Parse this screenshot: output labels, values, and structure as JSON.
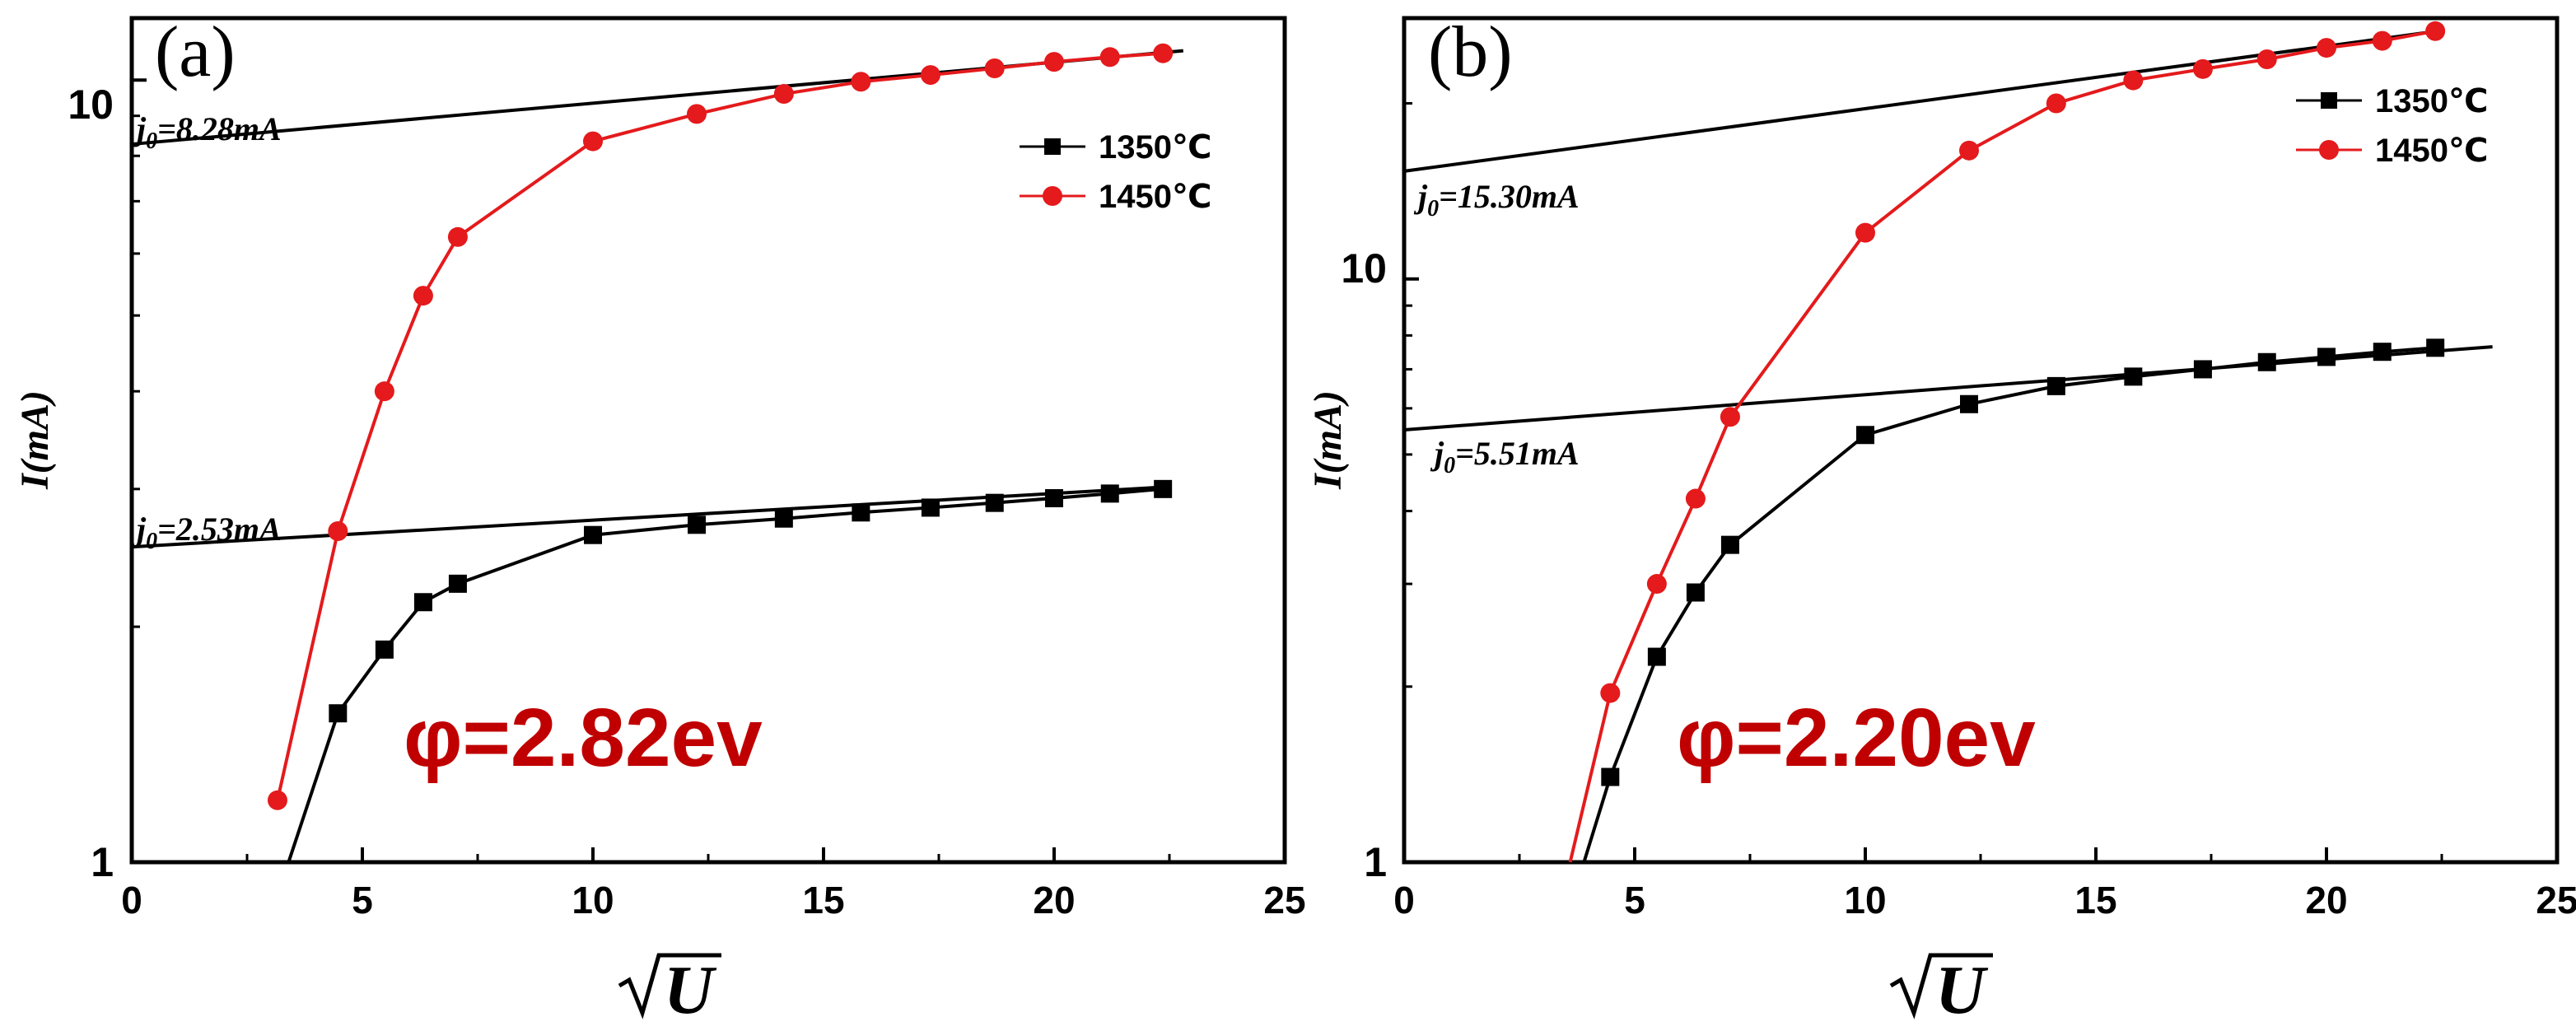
{
  "chart_data": [
    {
      "panel_label": "(a)",
      "type": "line",
      "scale": {
        "x": "linear",
        "y": "log"
      },
      "xlabel": "√U",
      "ylabel": "I(mA)",
      "xlim": [
        0,
        25
      ],
      "ylim": [
        1,
        12
      ],
      "x_ticks": [
        "0",
        "5",
        "10",
        "15",
        "20",
        "25"
      ],
      "y_ticks": [
        "1",
        "10"
      ],
      "legend": {
        "position": "top-right",
        "entries": [
          {
            "label": "1350℃",
            "color": "#000000",
            "marker": "square"
          },
          {
            "label": "1450℃",
            "color": "#e41a1c",
            "marker": "circle"
          }
        ]
      },
      "series": [
        {
          "name": "1350℃",
          "color": "#000000",
          "marker": "square",
          "x": [
            4.47,
            5.48,
            6.32,
            7.07,
            10,
            12.25,
            14.14,
            15.81,
            17.32,
            18.71,
            20,
            21.21,
            22.36
          ],
          "y": [
            1.55,
            1.87,
            2.15,
            2.27,
            2.62,
            2.7,
            2.75,
            2.8,
            2.84,
            2.88,
            2.92,
            2.96,
            3.0
          ],
          "line_start": {
            "x": 3.4,
            "y": 1.0
          }
        },
        {
          "name": "1450℃",
          "color": "#e41a1c",
          "marker": "circle",
          "x": [
            3.16,
            4.47,
            5.48,
            6.32,
            7.07,
            10,
            12.25,
            14.14,
            15.81,
            17.32,
            18.71,
            20,
            21.21,
            22.36
          ],
          "y": [
            1.2,
            2.65,
            4.0,
            5.3,
            6.3,
            8.35,
            9.05,
            9.6,
            9.95,
            10.15,
            10.35,
            10.55,
            10.7,
            10.82
          ]
        }
      ],
      "fit_lines": [
        {
          "x": [
            0,
            22.8
          ],
          "y": [
            8.28,
            10.9
          ]
        },
        {
          "x": [
            0,
            22.5
          ],
          "y": [
            2.53,
            3.02
          ]
        }
      ],
      "annotations": [
        {
          "text_base": "j",
          "text_sub": "0",
          "text_rest": "=8.28mA"
        },
        {
          "text_base": "j",
          "text_sub": "0",
          "text_rest": "=2.53mA"
        }
      ],
      "big_label": "φ=2.82ev",
      "big_label_color": "#c00000"
    },
    {
      "panel_label": "(b)",
      "type": "line",
      "scale": {
        "x": "linear",
        "y": "log"
      },
      "xlabel": "√U",
      "ylabel": "I(mA)",
      "xlim": [
        0,
        25
      ],
      "ylim": [
        1,
        28
      ],
      "x_ticks": [
        "0",
        "5",
        "10",
        "15",
        "20",
        "25"
      ],
      "y_ticks": [
        "1",
        "10"
      ],
      "legend": {
        "position": "top-right",
        "entries": [
          {
            "label": "1350℃",
            "color": "#000000",
            "marker": "square"
          },
          {
            "label": "1450℃",
            "color": "#e41a1c",
            "marker": "circle"
          }
        ]
      },
      "series": [
        {
          "name": "1350℃",
          "color": "#000000",
          "marker": "square",
          "x": [
            4.47,
            5.48,
            6.32,
            7.07,
            10,
            12.25,
            14.14,
            15.81,
            17.32,
            18.71,
            20,
            21.21,
            22.36
          ],
          "y": [
            1.4,
            2.25,
            2.9,
            3.5,
            5.4,
            6.1,
            6.55,
            6.8,
            7.0,
            7.2,
            7.35,
            7.5,
            7.62
          ],
          "line_start": {
            "x": 3.9,
            "y": 1.0
          }
        },
        {
          "name": "1450℃",
          "color": "#e41a1c",
          "marker": "circle",
          "x": [
            4.47,
            5.48,
            6.32,
            7.07,
            10,
            12.25,
            14.14,
            15.81,
            17.32,
            18.71,
            20,
            21.21,
            22.36
          ],
          "y": [
            1.95,
            3.0,
            4.2,
            5.8,
            12.0,
            16.6,
            20.0,
            21.9,
            22.9,
            23.8,
            24.9,
            25.6,
            26.6
          ],
          "line_start": {
            "x": 3.6,
            "y": 1.0
          }
        }
      ],
      "fit_lines": [
        {
          "x": [
            0,
            22.4
          ],
          "y": [
            15.3,
            26.6
          ]
        },
        {
          "x": [
            0,
            23.6
          ],
          "y": [
            5.51,
            7.65
          ]
        }
      ],
      "annotations": [
        {
          "text_base": "j",
          "text_sub": "0",
          "text_rest": "=15.30mA"
        },
        {
          "text_base": "j",
          "text_sub": "0",
          "text_rest": "=5.51mA"
        }
      ],
      "big_label": "φ=2.20ev",
      "big_label_color": "#c00000"
    }
  ]
}
